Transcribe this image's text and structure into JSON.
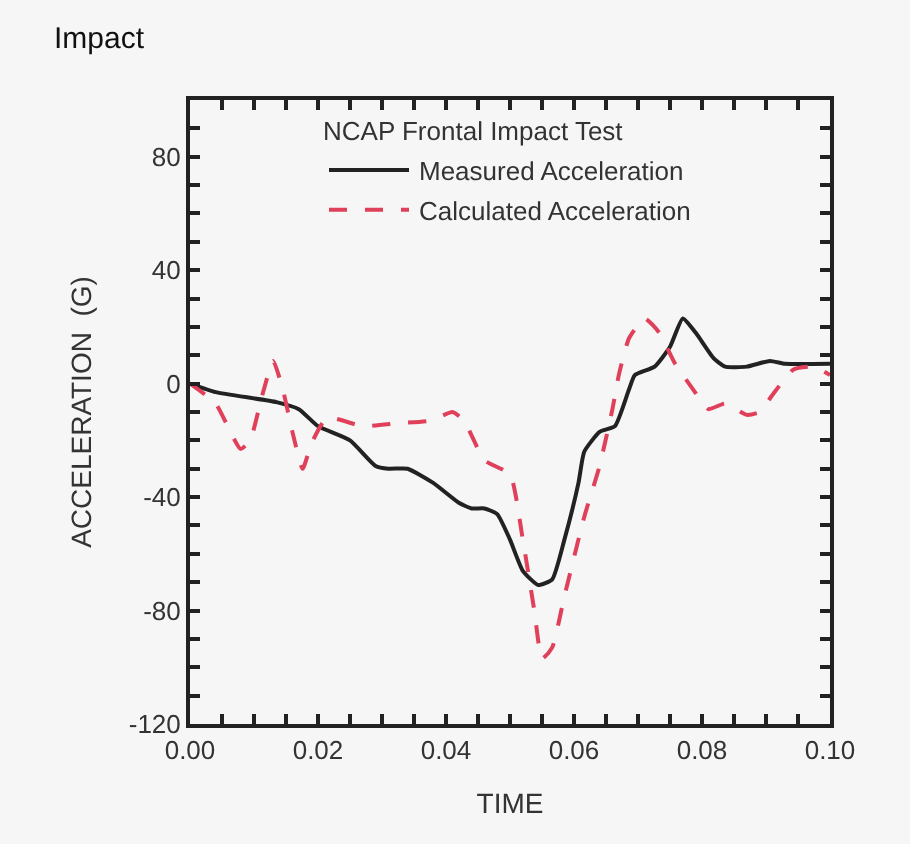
{
  "chart_data": {
    "type": "line",
    "xlabel": "TIME",
    "ylabel": "ACCELERATION  (G)",
    "legend_title": "NCAP Frontal Impact Test",
    "annotations": [
      "Impact"
    ],
    "xlim": [
      0,
      0.1
    ],
    "ylim": [
      -120,
      100
    ],
    "xticks": [
      {
        "value": 0,
        "label": "0.00"
      },
      {
        "value": 0.005,
        "label": null
      },
      {
        "value": 0.01,
        "label": null
      },
      {
        "value": 0.015,
        "label": null
      },
      {
        "value": 0.02,
        "label": "0.02"
      },
      {
        "value": 0.025,
        "label": null
      },
      {
        "value": 0.03,
        "label": null
      },
      {
        "value": 0.035,
        "label": null
      },
      {
        "value": 0.04,
        "label": "0.04"
      },
      {
        "value": 0.045,
        "label": null
      },
      {
        "value": 0.05,
        "label": null
      },
      {
        "value": 0.055,
        "label": null
      },
      {
        "value": 0.06,
        "label": "0.06"
      },
      {
        "value": 0.065,
        "label": null
      },
      {
        "value": 0.07,
        "label": null
      },
      {
        "value": 0.075,
        "label": null
      },
      {
        "value": 0.08,
        "label": "0.08"
      },
      {
        "value": 0.085,
        "label": null
      },
      {
        "value": 0.09,
        "label": null
      },
      {
        "value": 0.095,
        "label": null
      },
      {
        "value": 0.1,
        "label": "0.10"
      }
    ],
    "yticks": [
      -120,
      {
        "value": -110,
        "label": null
      },
      {
        "value": -100,
        "label": null
      },
      {
        "value": -90,
        "label": null
      },
      -80,
      {
        "value": -70,
        "label": null
      },
      {
        "value": -60,
        "label": null
      },
      {
        "value": -50,
        "label": null
      },
      -40,
      {
        "value": -30,
        "label": null
      },
      {
        "value": -20,
        "label": null
      },
      {
        "value": -10,
        "label": null
      },
      0,
      {
        "value": 10,
        "label": null
      },
      {
        "value": 20,
        "label": null
      },
      {
        "value": 30,
        "label": null
      },
      40,
      {
        "value": 50,
        "label": null
      },
      {
        "value": 60,
        "label": null
      },
      {
        "value": 70,
        "label": null
      },
      80,
      {
        "value": 90,
        "label": null
      }
    ],
    "grid": false,
    "legend": "top",
    "marker": "none",
    "series": [
      {
        "name": "Measured Acceleration",
        "color": "#222222",
        "line_style": "solid",
        "x": [
          0,
          0.004,
          0.0135,
          0.017,
          0.02,
          0.025,
          0.029,
          0.031,
          0.034,
          0.038,
          0.042,
          0.044,
          0.046,
          0.048,
          0.05,
          0.052,
          0.0544,
          0.0566,
          0.0585,
          0.0607,
          0.0616,
          0.064,
          0.0664,
          0.0686,
          0.0695,
          0.0726,
          0.075,
          0.077,
          0.079,
          0.0818,
          0.0836,
          0.087,
          0.0906,
          0.093,
          0.1
        ],
        "values": [
          0,
          -3,
          -6.5,
          -9,
          -15,
          -20,
          -29,
          -30,
          -30,
          -35,
          -42,
          -44,
          -44,
          -46,
          -55,
          -66,
          -71,
          -69,
          -55,
          -35,
          -24,
          -17,
          -15,
          -2,
          3,
          6,
          13,
          23,
          18,
          9,
          6,
          6,
          8,
          7,
          7
        ]
      },
      {
        "name": "Calculated Acceleration",
        "color": "#e0405a",
        "line_style": "dashed",
        "x": [
          0,
          0.004,
          0.0079,
          0.0094,
          0.0113,
          0.013,
          0.0145,
          0.016,
          0.0176,
          0.019,
          0.0214,
          0.027,
          0.0324,
          0.0377,
          0.041,
          0.0428,
          0.046,
          0.05,
          0.052,
          0.0538,
          0.055,
          0.0566,
          0.0585,
          0.0616,
          0.064,
          0.066,
          0.067,
          0.0686,
          0.071,
          0.0733,
          0.0758,
          0.0786,
          0.081,
          0.0836,
          0.087,
          0.089,
          0.091,
          0.0943,
          0.0975,
          0.1
        ],
        "values": [
          0,
          -7,
          -23,
          -20,
          -4,
          8,
          -2,
          -17,
          -30,
          -21,
          -12,
          -15,
          -14,
          -13,
          -10,
          -13,
          -27,
          -32,
          -55,
          -80,
          -97,
          -93,
          -75,
          -47,
          -29,
          -9,
          3,
          16,
          23,
          18,
          7,
          -2,
          -9,
          -7,
          -11,
          -10,
          -4,
          5,
          6,
          3
        ]
      }
    ]
  }
}
